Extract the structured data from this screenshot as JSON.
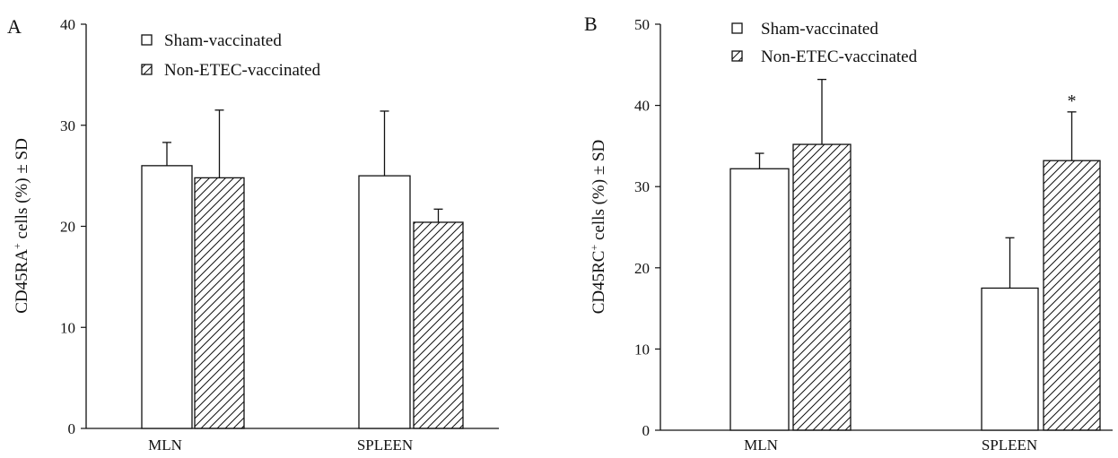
{
  "colors": {
    "ink": "#111111",
    "background": "#ffffff"
  },
  "chart_data": [
    {
      "panel_label": "A",
      "type": "bar",
      "ylabel_main": "CD45RA",
      "ylabel_sup": "+",
      "ylabel_rest": " cells (%) ± SD",
      "ylim": [
        0,
        40
      ],
      "yticks": [
        "0",
        "10",
        "20",
        "30",
        "40"
      ],
      "categories": [
        "MLN",
        "SPLEEN"
      ],
      "legend_placement": "top-left",
      "grid": false,
      "series": [
        {
          "name": "Sham-vaccinated",
          "pattern": "open",
          "values": [
            26,
            25
          ],
          "errors": [
            2.3,
            6.4
          ]
        },
        {
          "name": "Non-ETEC-vaccinated",
          "pattern": "hatched",
          "values": [
            24.8,
            20.4
          ],
          "errors": [
            6.7,
            1.3
          ]
        }
      ],
      "annotations": []
    },
    {
      "panel_label": "B",
      "type": "bar",
      "ylabel_main": "CD45RC",
      "ylabel_sup": "+",
      "ylabel_rest": " cells (%) ± SD",
      "ylim": [
        0,
        50
      ],
      "yticks": [
        "0",
        "10",
        "20",
        "30",
        "40",
        "50"
      ],
      "categories": [
        "MLN",
        "SPLEEN"
      ],
      "legend_placement": "top-left",
      "grid": false,
      "series": [
        {
          "name": "Sham-vaccinated",
          "pattern": "open",
          "values": [
            32.2,
            17.5
          ],
          "errors": [
            1.9,
            6.2
          ]
        },
        {
          "name": "Non-ETEC-vaccinated",
          "pattern": "hatched",
          "values": [
            35.2,
            33.2
          ],
          "errors": [
            8,
            6
          ]
        }
      ],
      "annotations": [
        {
          "text": "*",
          "category": "SPLEEN",
          "series": "Non-ETEC-vaccinated"
        }
      ]
    }
  ]
}
